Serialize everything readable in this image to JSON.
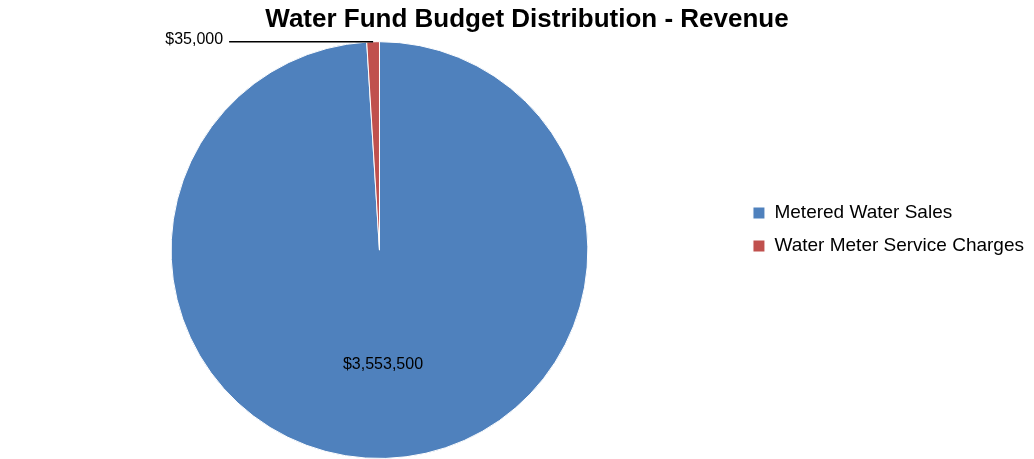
{
  "chart_data": {
    "type": "pie",
    "title": "Water Fund Budget Distribution - Revenue",
    "categories": [
      "Metered Water Sales",
      "Water Meter Service Charges"
    ],
    "values": [
      3553500,
      35000
    ],
    "colors": [
      "#4f81bd",
      "#c0504d"
    ],
    "value_labels": [
      "$3,553,500",
      "$35,000"
    ],
    "legend": "right"
  }
}
